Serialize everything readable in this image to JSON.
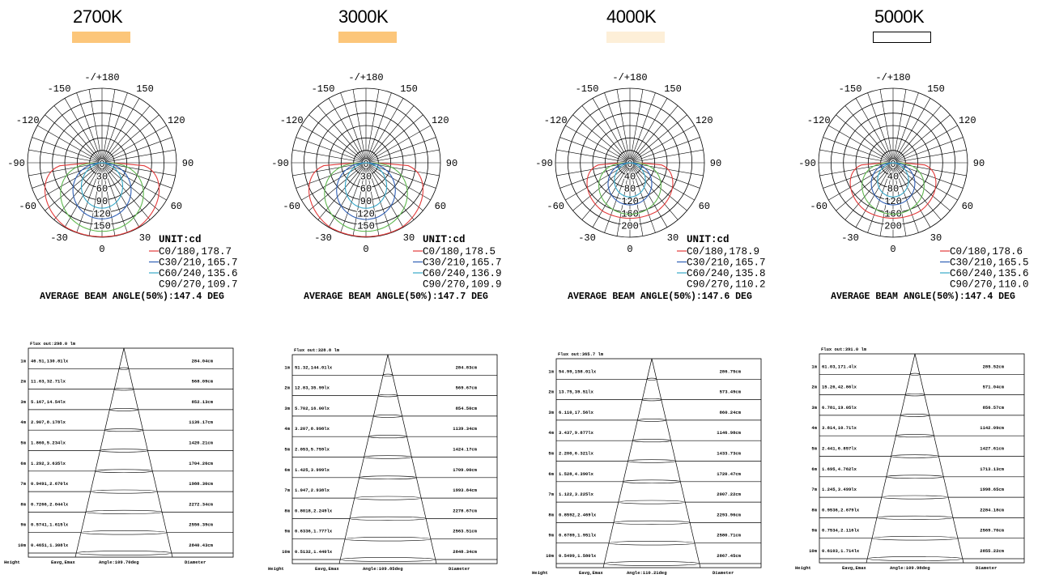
{
  "chart_data": [
    {
      "type": "polar",
      "title": "2700K",
      "swatch_color": "#fcc67a",
      "swatch_border": false,
      "angle_labels": [
        "-/+180",
        "150",
        "120",
        "90",
        "60",
        "30",
        "0",
        "-30",
        "-60",
        "-90",
        "-120",
        "-150"
      ],
      "radial_labels": [
        "0",
        "30",
        "60",
        "90",
        "120",
        "150"
      ],
      "radial_max": 180,
      "unit_label": "UNIT:cd",
      "legend": [
        {
          "label": "C0/180,178.7",
          "color": "#e23b3b"
        },
        {
          "label": "C30/210,165.7",
          "color": "#2f5fb5"
        },
        {
          "label": "C60/240,135.6",
          "color": "#36a8c9"
        },
        {
          "label": "C90/270,109.7",
          "color": ""
        }
      ],
      "beam_caption": "AVERAGE BEAM ANGLE(50%):147.4 DEG",
      "curves": [
        {
          "color": "#e23b3b",
          "max": 178.7,
          "shape": "flat"
        },
        {
          "color": "#5fb84f",
          "max": 165.7,
          "shape": "mid"
        },
        {
          "color": "#2f5fb5",
          "max": 135.6,
          "shape": "round"
        },
        {
          "color": "#36a8c9",
          "max": 109.7,
          "shape": "narrow"
        }
      ],
      "cone": {
        "flux": "Flux out:298.0 lm",
        "footer": {
          "height": "Height",
          "values": "Eavg,Emax",
          "angle": "Angle:109.70deg",
          "diameter": "Diameter"
        },
        "rows": [
          {
            "h": "1m",
            "e": "46.51,130.81lx",
            "d": "284.04cm"
          },
          {
            "h": "2m",
            "e": "11.63,32.71lx",
            "d": "568.09cm"
          },
          {
            "h": "3m",
            "e": "5.167,14.54lx",
            "d": "852.13cm"
          },
          {
            "h": "4m",
            "e": "2.907,8.178lx",
            "d": "1136.17cm"
          },
          {
            "h": "5m",
            "e": "1.860,5.234lx",
            "d": "1420.21cm"
          },
          {
            "h": "6m",
            "e": "1.292,3.635lx",
            "d": "1704.26cm"
          },
          {
            "h": "7m",
            "e": "0.9491,2.670lx",
            "d": "1988.30cm"
          },
          {
            "h": "8m",
            "e": "0.7266,2.044lx",
            "d": "2272.34cm"
          },
          {
            "h": "9m",
            "e": "0.5741,1.615lx",
            "d": "2556.39cm"
          },
          {
            "h": "10m",
            "e": "0.4651,1.308lx",
            "d": "2840.43cm"
          }
        ]
      }
    },
    {
      "type": "polar",
      "title": "3000K",
      "swatch_color": "#fcc67a",
      "swatch_border": false,
      "angle_labels": [
        "-/+180",
        "150",
        "120",
        "90",
        "60",
        "30",
        "0",
        "-30",
        "-60",
        "-90",
        "-120",
        "-150"
      ],
      "radial_labels": [
        "0",
        "30",
        "60",
        "90",
        "120",
        "150"
      ],
      "radial_max": 180,
      "unit_label": "UNIT:cd",
      "legend": [
        {
          "label": "C0/180,178.5",
          "color": "#e23b3b"
        },
        {
          "label": "C30/210,165.7",
          "color": "#2f5fb5"
        },
        {
          "label": "C60/240,136.9",
          "color": "#36a8c9"
        },
        {
          "label": "C90/270,109.9",
          "color": ""
        }
      ],
      "beam_caption": "AVERAGE BEAM ANGLE(50%):147.7 DEG",
      "curves": [
        {
          "color": "#e23b3b",
          "max": 178.5,
          "shape": "flat"
        },
        {
          "color": "#5fb84f",
          "max": 165.7,
          "shape": "mid"
        },
        {
          "color": "#2f5fb5",
          "max": 136.9,
          "shape": "round"
        },
        {
          "color": "#36a8c9",
          "max": 109.9,
          "shape": "narrow"
        }
      ],
      "cone": {
        "flux": "Flux out:328.8 lm",
        "footer": {
          "height": "Height",
          "values": "Eavg,Emax",
          "angle": "Angle:109.85deg",
          "diameter": "Diameter"
        },
        "rows": [
          {
            "h": "1m",
            "e": "51.32,144.01lx",
            "d": "284.83cm"
          },
          {
            "h": "2m",
            "e": "12.83,35.99lx",
            "d": "569.67cm"
          },
          {
            "h": "3m",
            "e": "5.702,16.00lx",
            "d": "854.50cm"
          },
          {
            "h": "4m",
            "e": "3.207,8.998lx",
            "d": "1139.34cm"
          },
          {
            "h": "5m",
            "e": "2.053,5.759lx",
            "d": "1424.17cm"
          },
          {
            "h": "6m",
            "e": "1.425,3.999lx",
            "d": "1709.00cm"
          },
          {
            "h": "7m",
            "e": "1.047,2.938lx",
            "d": "1993.84cm"
          },
          {
            "h": "8m",
            "e": "0.8018,2.249lx",
            "d": "2278.67cm"
          },
          {
            "h": "9m",
            "e": "0.6336,1.777lx",
            "d": "2563.51cm"
          },
          {
            "h": "10m",
            "e": "0.5132,1.440lx",
            "d": "2848.34cm"
          }
        ]
      }
    },
    {
      "type": "polar",
      "title": "4000K",
      "swatch_color": "#fdefd8",
      "swatch_border": false,
      "angle_labels": [
        "-/+180",
        "150",
        "120",
        "90",
        "60",
        "30",
        "0",
        "-30",
        "-60",
        "-90",
        "-120",
        "-150"
      ],
      "radial_labels": [
        "0",
        "40",
        "80",
        "120",
        "160",
        "200"
      ],
      "radial_max": 240,
      "unit_label": "UNIT:cd",
      "legend": [
        {
          "label": "C0/180,178.9",
          "color": "#e23b3b"
        },
        {
          "label": "C30/210,165.7",
          "color": "#2f5fb5"
        },
        {
          "label": "C60/240,135.8",
          "color": "#36a8c9"
        },
        {
          "label": "C90/270,110.2",
          "color": ""
        }
      ],
      "beam_caption": "AVERAGE BEAM ANGLE(50%):147.6 DEG",
      "curves": [
        {
          "color": "#e23b3b",
          "max": 178.9,
          "shape": "flat"
        },
        {
          "color": "#5fb84f",
          "max": 165.7,
          "shape": "mid"
        },
        {
          "color": "#2f5fb5",
          "max": 135.8,
          "shape": "round"
        },
        {
          "color": "#36a8c9",
          "max": 110.2,
          "shape": "narrow"
        }
      ],
      "cone": {
        "flux": "Flux out:365.7 lm",
        "footer": {
          "height": "Height",
          "values": "Eavg,Emax",
          "angle": "Angle:110.21deg",
          "diameter": "Diameter"
        },
        "rows": [
          {
            "h": "1m",
            "e": "54.99,158.01lx",
            "d": "286.75cm"
          },
          {
            "h": "2m",
            "e": "13.75,39.51lx",
            "d": "573.49cm"
          },
          {
            "h": "3m",
            "e": "6.110,17.56lx",
            "d": "860.24cm"
          },
          {
            "h": "4m",
            "e": "3.437,9.877lx",
            "d": "1146.98cm"
          },
          {
            "h": "5m",
            "e": "2.200,6.321lx",
            "d": "1433.73cm"
          },
          {
            "h": "6m",
            "e": "1.528,4.390lx",
            "d": "1720.47cm"
          },
          {
            "h": "7m",
            "e": "1.122,3.225lx",
            "d": "2007.22cm"
          },
          {
            "h": "8m",
            "e": "0.8592,2.469lx",
            "d": "2293.96cm"
          },
          {
            "h": "9m",
            "e": "0.6789,1.951lx",
            "d": "2580.71cm"
          },
          {
            "h": "10m",
            "e": "0.5499,1.580lx",
            "d": "2867.45cm"
          }
        ]
      }
    },
    {
      "type": "polar",
      "title": "5000K",
      "swatch_color": "#ffffff",
      "swatch_border": true,
      "angle_labels": [
        "-/+180",
        "150",
        "120",
        "90",
        "60",
        "30",
        "0",
        "-30",
        "-60",
        "-90",
        "-120",
        "-150"
      ],
      "radial_labels": [
        "0",
        "40",
        "80",
        "120",
        "160",
        "200"
      ],
      "radial_max": 240,
      "unit_label": "",
      "legend": [
        {
          "label": "C0/180,178.6",
          "color": "#e23b3b"
        },
        {
          "label": "C30/210,165.5",
          "color": "#2f5fb5"
        },
        {
          "label": "C60/240,135.6",
          "color": "#36a8c9"
        },
        {
          "label": "C90/270,110.0",
          "color": ""
        }
      ],
      "beam_caption": "AVERAGE BEAM ANGLE(50%):147.4 DEG",
      "curves": [
        {
          "color": "#e23b3b",
          "max": 178.6,
          "shape": "flat"
        },
        {
          "color": "#5fb84f",
          "max": 165.5,
          "shape": "mid"
        },
        {
          "color": "#2f5fb5",
          "max": 135.6,
          "shape": "round"
        },
        {
          "color": "#36a8c9",
          "max": 110.0,
          "shape": "narrow"
        }
      ],
      "cone": {
        "flux": "Flux out:391.0 lm",
        "footer": {
          "height": "Height",
          "values": "Eavg,Emax",
          "angle": "Angle:109.98deg",
          "diameter": "Diameter"
        },
        "rows": [
          {
            "h": "1m",
            "e": "61.03,171.4lx",
            "d": "285.52cm"
          },
          {
            "h": "2m",
            "e": "15.26,42.86lx",
            "d": "571.04cm"
          },
          {
            "h": "3m",
            "e": "6.781,19.05lx",
            "d": "856.57cm"
          },
          {
            "h": "4m",
            "e": "3.814,10.71lx",
            "d": "1142.09cm"
          },
          {
            "h": "5m",
            "e": "2.441,6.857lx",
            "d": "1427.61cm"
          },
          {
            "h": "6m",
            "e": "1.695,4.762lx",
            "d": "1713.13cm"
          },
          {
            "h": "7m",
            "e": "1.245,3.499lx",
            "d": "1998.65cm"
          },
          {
            "h": "8m",
            "e": "0.9536,2.679lx",
            "d": "2284.18cm"
          },
          {
            "h": "9m",
            "e": "0.7534,2.116lx",
            "d": "2569.70cm"
          },
          {
            "h": "10m",
            "e": "0.6103,1.714lx",
            "d": "2855.22cm"
          }
        ]
      }
    }
  ]
}
